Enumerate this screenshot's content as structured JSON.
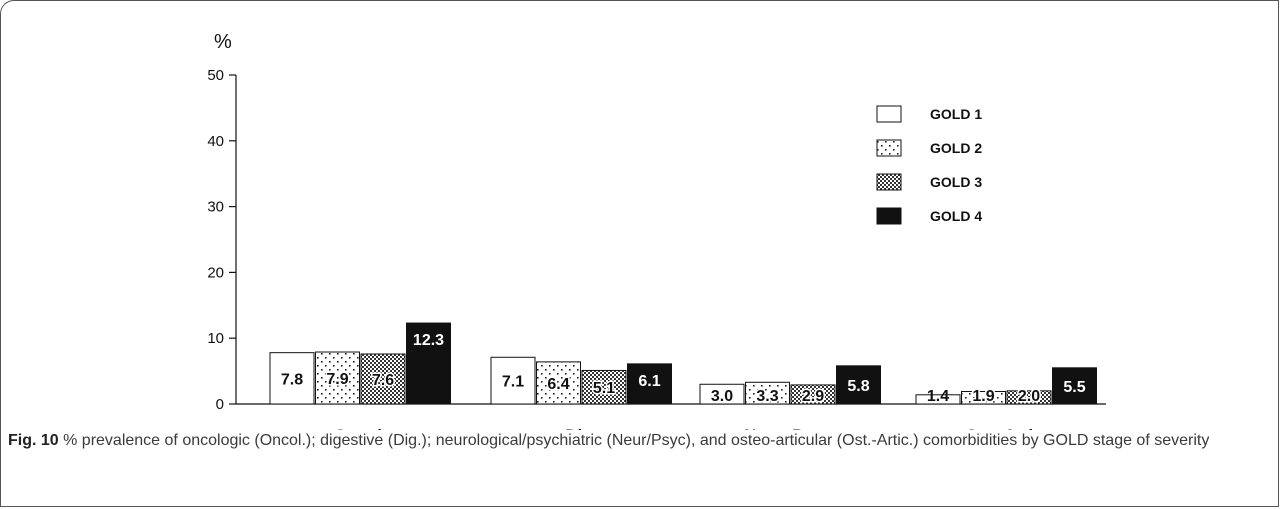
{
  "chart_data": {
    "type": "bar",
    "y_unit_label": "%",
    "ylim": [
      0,
      50
    ],
    "yticks": [
      "0",
      "10",
      "20",
      "30",
      "40",
      "50"
    ],
    "categories": [
      "Oncol.",
      "Dig.",
      "Neur.-Psyc.",
      "Ost.-Artic."
    ],
    "series": [
      {
        "name": "GOLD 1",
        "pattern": "none",
        "values": [
          7.8,
          7.1,
          3.0,
          1.4
        ],
        "labels": [
          "7.8",
          "7.1",
          "3.0",
          "1.4"
        ]
      },
      {
        "name": "GOLD 2",
        "pattern": "dots",
        "values": [
          7.9,
          6.4,
          3.3,
          1.9
        ],
        "labels": [
          "7.9",
          "6.4",
          "3.3",
          "1.9"
        ]
      },
      {
        "name": "GOLD 3",
        "pattern": "checker",
        "values": [
          7.6,
          5.1,
          2.9,
          2.0
        ],
        "labels": [
          "7.6",
          "5.1",
          "2.9",
          "2.0"
        ]
      },
      {
        "name": "GOLD 4",
        "pattern": "solid",
        "values": [
          12.3,
          6.1,
          5.8,
          5.5
        ],
        "labels": [
          "12.3",
          "6.1",
          "5.8",
          "5.5"
        ]
      }
    ],
    "legend_position": "top-right",
    "grid": false
  },
  "caption": {
    "label": "Fig. 10",
    "text": " % prevalence of oncologic (Oncol.); digestive (Dig.); neurological/psychiatric (Neur/Psyc), and osteo-articular (Ost.-Artic.) comorbidities by GOLD stage of severity"
  }
}
